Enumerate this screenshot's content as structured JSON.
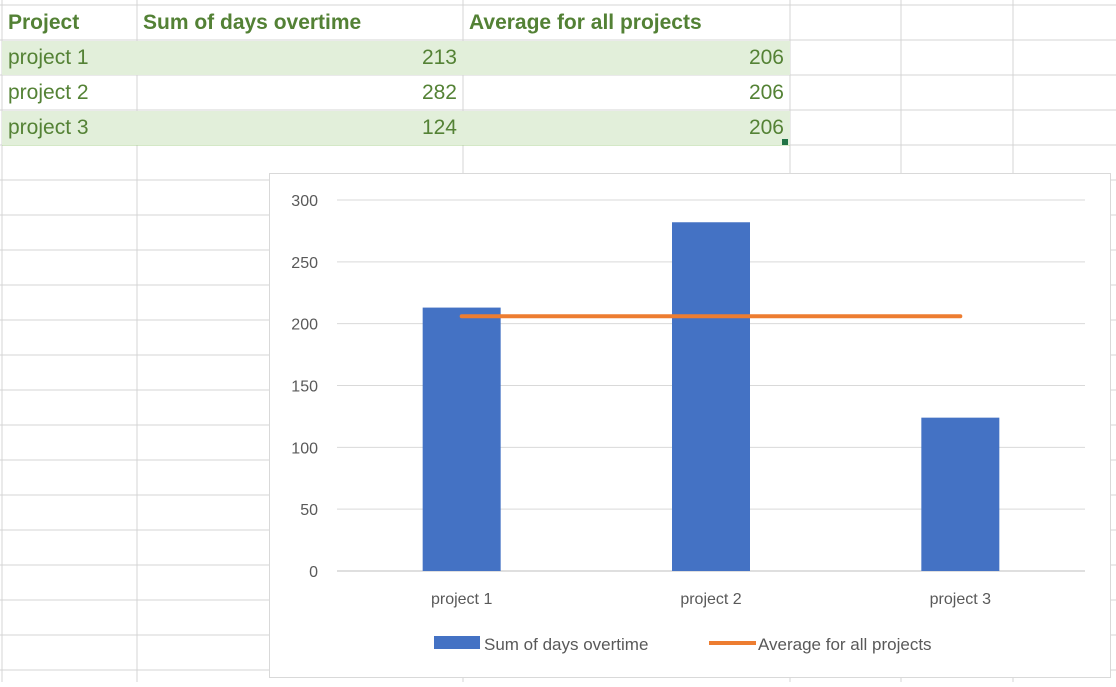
{
  "sheet": {
    "headers": [
      "Project",
      "Sum of days overtime",
      "Average for all projects"
    ],
    "rows": [
      [
        "project 1",
        "213",
        "206"
      ],
      [
        "project 2",
        "282",
        "206"
      ],
      [
        "project 3",
        "124",
        "206"
      ]
    ],
    "banded_row_color": "#E2EFDA",
    "text_color": "#548235"
  },
  "chart_data": {
    "type": "bar",
    "categories": [
      "project 1",
      "project 2",
      "project 3"
    ],
    "series": [
      {
        "name": "Sum of days overtime",
        "type": "bar",
        "values": [
          213,
          282,
          124
        ],
        "color": "#4472C4"
      },
      {
        "name": "Average for all projects",
        "type": "line",
        "values": [
          206,
          206,
          206
        ],
        "color": "#ED7D31"
      }
    ],
    "ylim": [
      0,
      300
    ],
    "yticks": [
      0,
      50,
      100,
      150,
      200,
      250,
      300
    ],
    "grid": true,
    "legend": "bottom",
    "title": "",
    "xlabel": "",
    "ylabel": ""
  }
}
